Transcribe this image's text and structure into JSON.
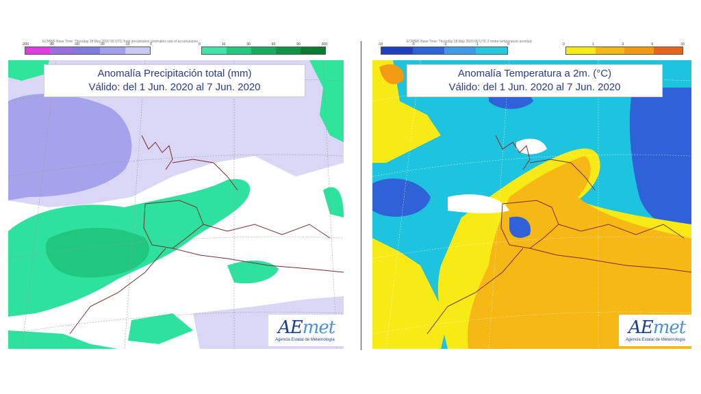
{
  "left_map": {
    "header": "ECMWF Base Time: Thursday 28 May 2020 00 UTC Total precipitation anomalies rate of accumulation",
    "legend_negative": [
      "-200",
      "-80",
      "-60",
      "-30",
      "-10",
      "0"
    ],
    "legend_positive": [
      "0",
      "10",
      "30",
      "60",
      "90",
      "200"
    ],
    "legend_negative_colors": [
      "#e23ce0",
      "#9a6ee0",
      "#7d7ddd",
      "#9f9ff0",
      "#c9c9f5"
    ],
    "legend_positive_colors": [
      "#3fe3a6",
      "#21c97f",
      "#18ad5e",
      "#0f9346",
      "#087a32"
    ],
    "title_line1": "Anomalía Precipitación total (mm)",
    "title_line2": "Válido: del 1 Jun. 2020 al 7 Jun. 2020"
  },
  "right_map": {
    "header": "ECMWF Base Time: Thursday 28 May 2020 00 UTC 2 metre temperature anomaly",
    "legend_negative": [
      "-10",
      "-5",
      "-3",
      "-1",
      "0"
    ],
    "legend_positive": [
      "0",
      "1",
      "3",
      "6",
      "10"
    ],
    "legend_negative_colors": [
      "#1f3fbf",
      "#2f62d6",
      "#3e9be8",
      "#27c9e0"
    ],
    "legend_positive_colors": [
      "#f7ea16",
      "#f5b814",
      "#f39a12",
      "#e8641a"
    ],
    "title_line1": "Anomalía Temperatura a 2m. (°C)",
    "title_line2": "Válido: del 1 Jun. 2020 al 7 Jun. 2020"
  },
  "logo": {
    "word_a": "AE",
    "word_b": "met",
    "subtitle": "Agencia Estatal de Meteorología"
  }
}
